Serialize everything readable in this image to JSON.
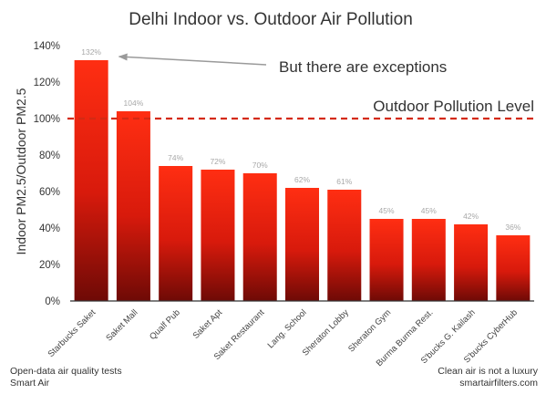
{
  "chart_data": {
    "type": "bar",
    "title": "Delhi Indoor vs. Outdoor Air Pollution",
    "xlabel": "",
    "ylabel": "Indoor PM2.5/Outdoor PM2.5",
    "categories": [
      "Starbucks Saket",
      "Saket Mall",
      "Qualf Pub",
      "Saket Apt",
      "Saket Restaurant",
      "Lang. School",
      "Sheraton Lobby",
      "Sheraton Gym",
      "Burma Burma Rest.",
      "S'bucks G. Kailash",
      "S'bucks CyberHub"
    ],
    "values": [
      132,
      104,
      74,
      72,
      70,
      62,
      61,
      45,
      45,
      42,
      36
    ],
    "value_labels": [
      "132%",
      "104%",
      "74%",
      "72%",
      "70%",
      "62%",
      "61%",
      "45%",
      "45%",
      "42%",
      "36%"
    ],
    "ylim": [
      0,
      140
    ],
    "yticks": [
      0,
      20,
      40,
      60,
      80,
      100,
      120,
      140
    ],
    "ytick_labels": [
      "0%",
      "20%",
      "40%",
      "60%",
      "80%",
      "100%",
      "120%",
      "140%"
    ],
    "grid": false,
    "reference_line": {
      "value": 100,
      "label": "Outdoor Pollution Level",
      "color": "#d42a14",
      "style": "dashed"
    },
    "annotation": {
      "text": "But there are exceptions",
      "points_to_category": "Starbucks Saket"
    },
    "colors": {
      "bar_top": "#ff2e12",
      "bar_bottom": "#6e0a06",
      "axis": "#333333",
      "arrow": "#9a9a9a"
    }
  },
  "footer": {
    "left_line1": "Open-data air quality tests",
    "left_line2": "Smart Air",
    "right_line1": "Clean air is not a luxury",
    "right_line2": "smartairfilters.com"
  }
}
